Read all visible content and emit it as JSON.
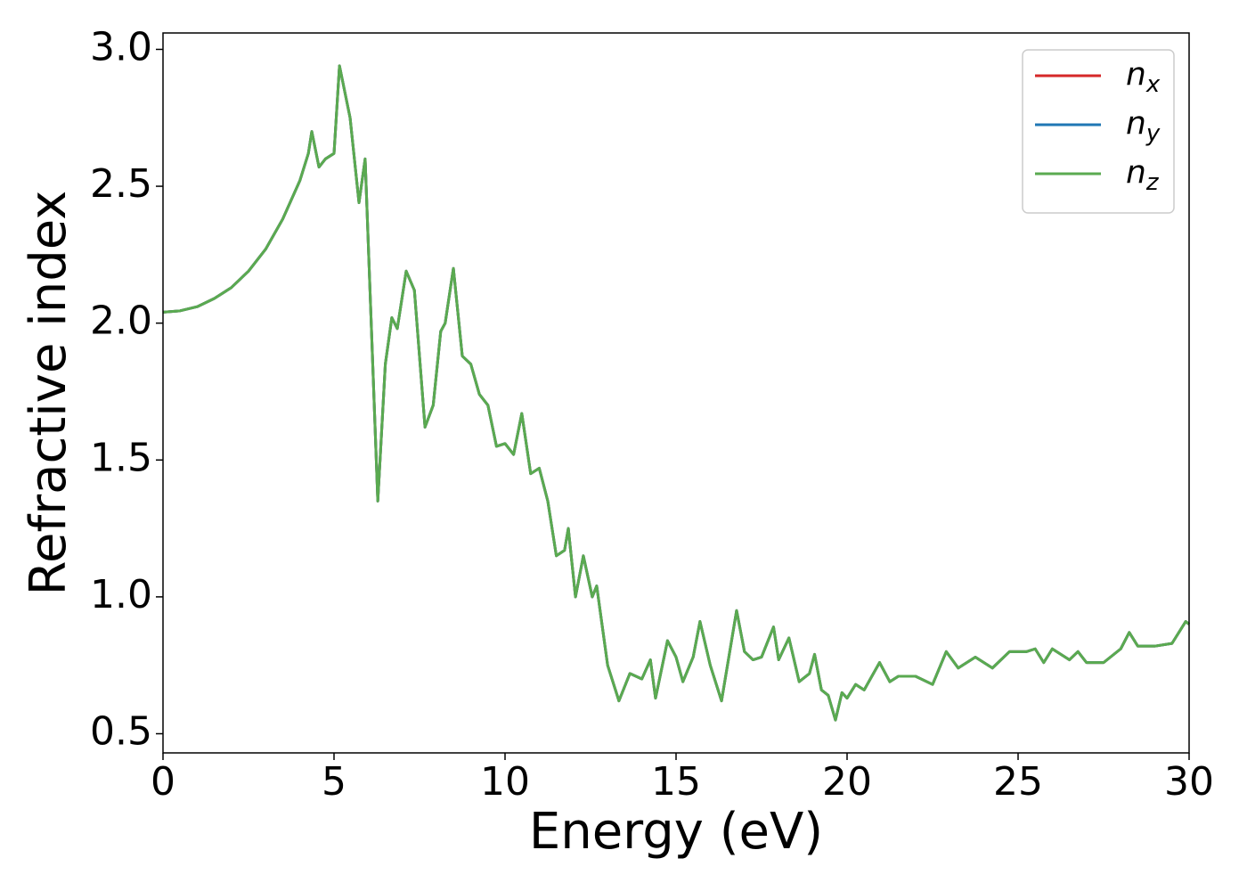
{
  "chart_data": {
    "type": "line",
    "xlabel": "Energy (eV)",
    "ylabel": "Refractive index",
    "xlim": [
      0,
      30
    ],
    "ylim": [
      0.43,
      3.06
    ],
    "xticks": [
      0,
      5,
      10,
      15,
      20,
      25,
      30
    ],
    "yticks": [
      {
        "value": 3,
        "label": "3.0"
      },
      2.5,
      {
        "value": 2,
        "label": "2.0"
      },
      1.5,
      {
        "value": 1,
        "label": "1.0"
      },
      0.5
    ],
    "legend": "upper right",
    "x": [
      0,
      0.5,
      1,
      1.5,
      2,
      2.5,
      3,
      3.5,
      4,
      4.25,
      4.35,
      4.56,
      4.75,
      5,
      5.16,
      5.47,
      5.73,
      5.91,
      6.28,
      6.5,
      6.69,
      6.85,
      7.11,
      7.35,
      7.66,
      7.9,
      8.12,
      8.25,
      8.49,
      8.75,
      9,
      9.25,
      9.5,
      9.75,
      10,
      10.25,
      10.49,
      10.75,
      11,
      11.25,
      11.5,
      11.74,
      11.85,
      12.06,
      12.29,
      12.55,
      12.68,
      13,
      13.33,
      13.65,
      14,
      14.25,
      14.4,
      14.75,
      15,
      15.2,
      15.5,
      15.7,
      16,
      16.33,
      16.77,
      17,
      17.25,
      17.5,
      17.85,
      18,
      18.3,
      18.6,
      18.9,
      19.05,
      19.25,
      19.45,
      19.66,
      19.85,
      20,
      20.25,
      20.5,
      20.95,
      21.25,
      21.5,
      22,
      22.5,
      22.9,
      23.25,
      23.75,
      24.25,
      24.75,
      25.25,
      25.5,
      25.75,
      26,
      26.5,
      26.75,
      27,
      27.5,
      28,
      28.25,
      28.5,
      29,
      29.5,
      29.9,
      30
    ],
    "series": [
      {
        "name": "nx",
        "color": "#d62728",
        "values": [
          2.04,
          2.045,
          2.06,
          2.09,
          2.13,
          2.19,
          2.27,
          2.38,
          2.52,
          2.62,
          2.7,
          2.57,
          2.6,
          2.62,
          2.94,
          2.75,
          2.44,
          2.6,
          1.35,
          1.85,
          2.02,
          1.98,
          2.19,
          2.12,
          1.62,
          1.7,
          1.97,
          2.0,
          2.2,
          1.88,
          1.85,
          1.74,
          1.7,
          1.55,
          1.56,
          1.52,
          1.67,
          1.45,
          1.47,
          1.35,
          1.15,
          1.17,
          1.25,
          1.0,
          1.15,
          1.0,
          1.04,
          0.75,
          0.62,
          0.72,
          0.7,
          0.77,
          0.63,
          0.84,
          0.78,
          0.69,
          0.78,
          0.91,
          0.75,
          0.62,
          0.95,
          0.8,
          0.77,
          0.78,
          0.89,
          0.77,
          0.85,
          0.69,
          0.72,
          0.79,
          0.66,
          0.64,
          0.55,
          0.65,
          0.63,
          0.68,
          0.66,
          0.76,
          0.69,
          0.71,
          0.71,
          0.68,
          0.8,
          0.74,
          0.78,
          0.74,
          0.8,
          0.8,
          0.81,
          0.76,
          0.81,
          0.77,
          0.8,
          0.76,
          0.76,
          0.81,
          0.87,
          0.82,
          0.82,
          0.83,
          0.91,
          0.9
        ]
      },
      {
        "name": "ny",
        "color": "#1f77b4",
        "values": [
          2.04,
          2.045,
          2.06,
          2.09,
          2.13,
          2.19,
          2.27,
          2.38,
          2.52,
          2.62,
          2.7,
          2.57,
          2.6,
          2.62,
          2.94,
          2.75,
          2.44,
          2.6,
          1.35,
          1.85,
          2.02,
          1.98,
          2.19,
          2.12,
          1.62,
          1.7,
          1.97,
          2.0,
          2.2,
          1.88,
          1.85,
          1.74,
          1.7,
          1.55,
          1.56,
          1.52,
          1.67,
          1.45,
          1.47,
          1.35,
          1.15,
          1.17,
          1.25,
          1.0,
          1.15,
          1.0,
          1.04,
          0.75,
          0.62,
          0.72,
          0.7,
          0.77,
          0.63,
          0.84,
          0.78,
          0.69,
          0.78,
          0.91,
          0.75,
          0.62,
          0.95,
          0.8,
          0.77,
          0.78,
          0.89,
          0.77,
          0.85,
          0.69,
          0.72,
          0.79,
          0.66,
          0.64,
          0.55,
          0.65,
          0.63,
          0.68,
          0.66,
          0.76,
          0.69,
          0.71,
          0.71,
          0.68,
          0.8,
          0.74,
          0.78,
          0.74,
          0.8,
          0.8,
          0.81,
          0.76,
          0.81,
          0.77,
          0.8,
          0.76,
          0.76,
          0.81,
          0.87,
          0.82,
          0.82,
          0.83,
          0.91,
          0.9
        ]
      },
      {
        "name": "nz",
        "color": "#5aaa50",
        "values": [
          2.04,
          2.045,
          2.06,
          2.09,
          2.13,
          2.19,
          2.27,
          2.38,
          2.52,
          2.62,
          2.7,
          2.57,
          2.6,
          2.62,
          2.94,
          2.75,
          2.44,
          2.6,
          1.35,
          1.85,
          2.02,
          1.98,
          2.19,
          2.12,
          1.62,
          1.7,
          1.97,
          2.0,
          2.2,
          1.88,
          1.85,
          1.74,
          1.7,
          1.55,
          1.56,
          1.52,
          1.67,
          1.45,
          1.47,
          1.35,
          1.15,
          1.17,
          1.25,
          1.0,
          1.15,
          1.0,
          1.04,
          0.75,
          0.62,
          0.72,
          0.7,
          0.77,
          0.63,
          0.84,
          0.78,
          0.69,
          0.78,
          0.91,
          0.75,
          0.62,
          0.95,
          0.8,
          0.77,
          0.78,
          0.89,
          0.77,
          0.85,
          0.69,
          0.72,
          0.79,
          0.66,
          0.64,
          0.55,
          0.65,
          0.63,
          0.68,
          0.66,
          0.76,
          0.69,
          0.71,
          0.71,
          0.68,
          0.8,
          0.74,
          0.78,
          0.74,
          0.8,
          0.8,
          0.81,
          0.76,
          0.81,
          0.77,
          0.8,
          0.76,
          0.76,
          0.81,
          0.87,
          0.82,
          0.82,
          0.83,
          0.91,
          0.9
        ]
      }
    ]
  }
}
